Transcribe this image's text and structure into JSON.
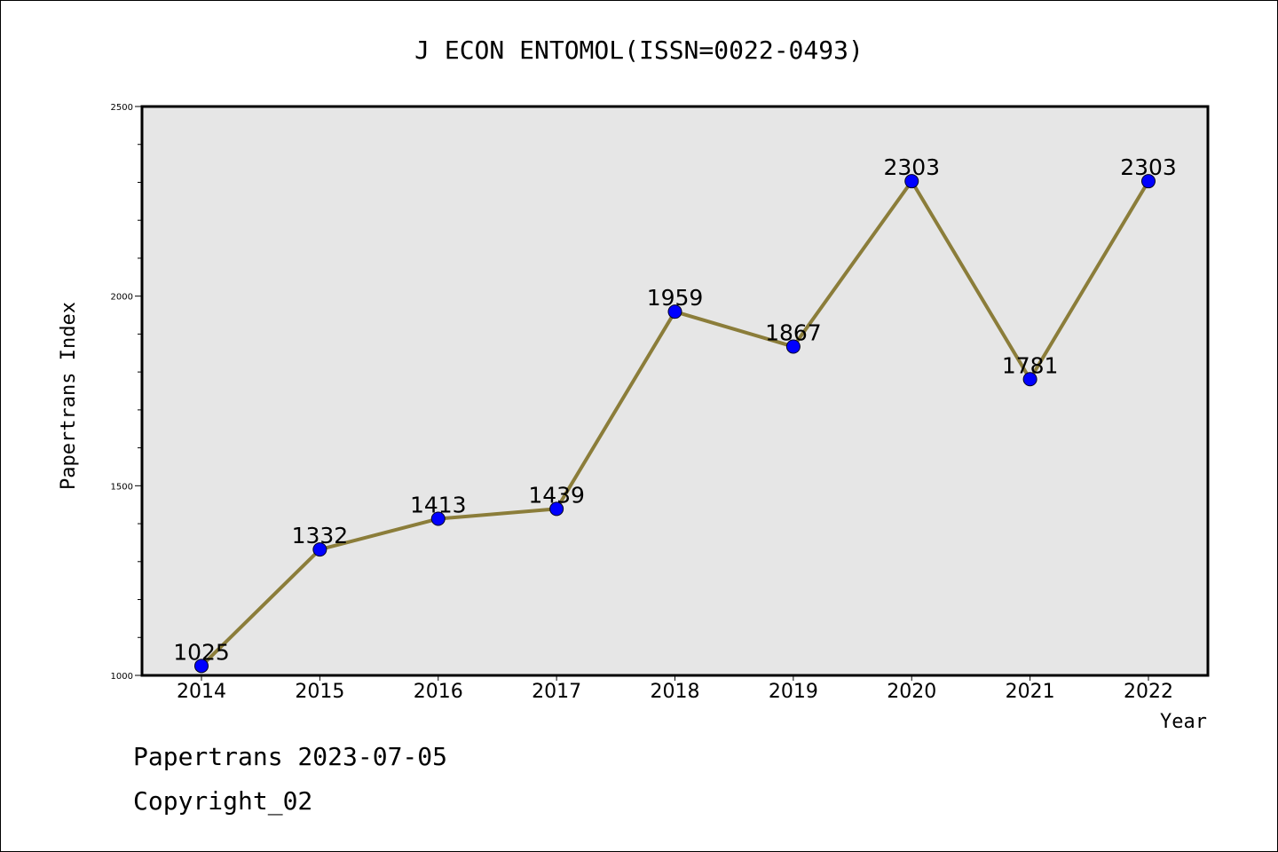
{
  "chart_data": {
    "type": "line",
    "title": "J ECON ENTOMOL(ISSN=0022-0493)",
    "xlabel": "Year",
    "ylabel": "Papertrans Index",
    "categories": [
      "2014",
      "2015",
      "2016",
      "2017",
      "2018",
      "2019",
      "2020",
      "2021",
      "2022"
    ],
    "values": [
      1025,
      1332,
      1413,
      1439,
      1959,
      1867,
      2303,
      1781,
      2303
    ],
    "ylim": [
      1000,
      2500
    ],
    "yticks": [
      1000,
      1500,
      2000,
      2500
    ],
    "grid": false,
    "line_color": "#8B7D3A",
    "marker_color": "#0000FF",
    "plot_background": "#E6E6E6"
  },
  "footer": {
    "date_line": "Papertrans 2023-07-05",
    "copyright_line": "Copyright_02"
  }
}
